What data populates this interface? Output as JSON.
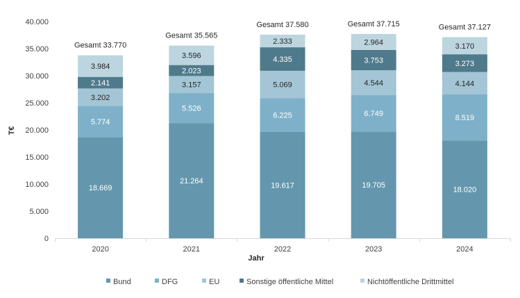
{
  "chart_data": {
    "type": "bar",
    "stacked": true,
    "categories": [
      "2020",
      "2021",
      "2022",
      "2023",
      "2024"
    ],
    "series": [
      {
        "name": "Bund",
        "values": [
          18669,
          21264,
          19617,
          19705,
          18020
        ],
        "labels": [
          "18.669",
          "21.264",
          "19.617",
          "19.705",
          "18.020"
        ],
        "color": "#6497ad",
        "label_color": "#ffffff"
      },
      {
        "name": "DFG",
        "values": [
          5774,
          5526,
          6225,
          6749,
          8519
        ],
        "labels": [
          "5.774",
          "5.526",
          "6.225",
          "6.749",
          "8.519"
        ],
        "color": "#7eb1c9",
        "label_color": "#ffffff"
      },
      {
        "name": "EU",
        "values": [
          3202,
          3157,
          5069,
          4544,
          4144
        ],
        "labels": [
          "3.202",
          "3.157",
          "5.069",
          "4.544",
          "4.144"
        ],
        "color": "#a3c5d5",
        "label_color": "#262626"
      },
      {
        "name": "Sonstige öffentliche Mittel",
        "values": [
          2141,
          2023,
          4335,
          3753,
          3273
        ],
        "labels": [
          "2.141",
          "2.023",
          "4.335",
          "3.753",
          "3.273"
        ],
        "color": "#4f7a8c",
        "label_color": "#ffffff"
      },
      {
        "name": "Nichtöffentliche Drittmittel",
        "values": [
          3984,
          3596,
          2333,
          2964,
          3170
        ],
        "labels": [
          "3.984",
          "3.596",
          "2.333",
          "2.964",
          "3.170"
        ],
        "color": "#bcd5df",
        "label_color": "#262626"
      }
    ],
    "totals": [
      33770,
      35565,
      37580,
      37715,
      37127
    ],
    "total_labels": [
      "Gesamt 33.770",
      "Gesamt 35.565",
      "Gesamt 37.580",
      "Gesamt 37.715",
      "Gesamt 37.127"
    ],
    "ylim": [
      0,
      40000
    ],
    "yticks": [
      0,
      5000,
      10000,
      15000,
      20000,
      25000,
      30000,
      35000,
      40000
    ],
    "ytick_labels": [
      "0",
      "5.000",
      "10.000",
      "15.000",
      "20.000",
      "25.000",
      "30.000",
      "35.000",
      "40.000"
    ],
    "xlabel": "Jahr",
    "ylabel": "T€",
    "title": "",
    "grid": false,
    "legend_position": "bottom"
  }
}
